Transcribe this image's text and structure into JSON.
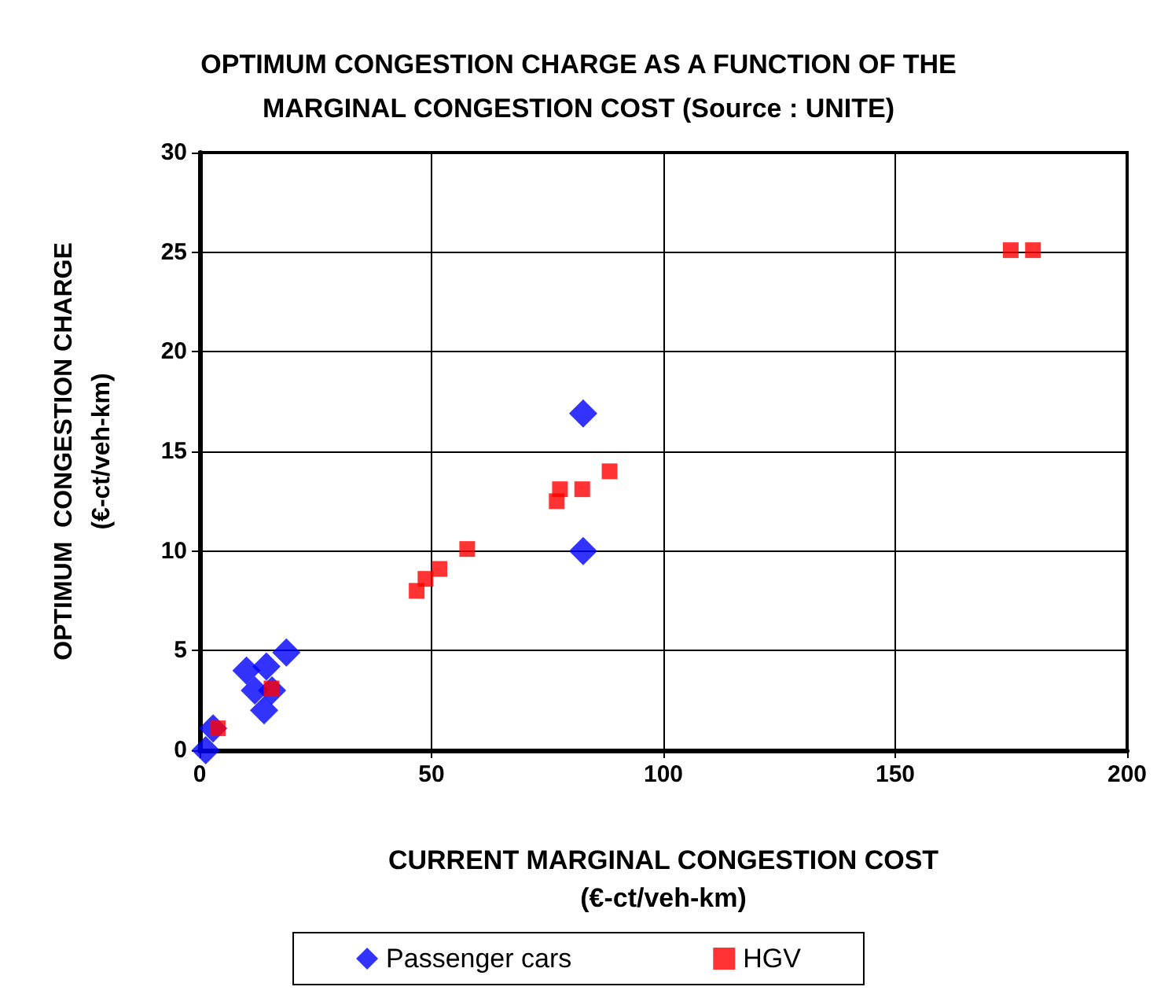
{
  "chart_data": {
    "type": "scatter",
    "title": "OPTIMUM CONGESTION CHARGE AS A FUNCTION OF THE\nMARGINAL CONGESTION COST (Source : UNITE)",
    "xlabel": "CURRENT MARGINAL CONGESTION COST\n(€-ct/veh-km)",
    "ylabel": "OPTIMUM  CONGESTION CHARGE\n(€-ct/veh-km)",
    "series": [
      {
        "name": "Passenger cars",
        "color": "#0000ff",
        "marker": "diamond",
        "x": [
          1.3,
          2.9,
          10.1,
          14.4,
          18.7,
          11.9,
          15.6,
          13.9,
          82.7,
          82.7
        ],
        "values": [
          0,
          1.1,
          4,
          4.2,
          4.9,
          3,
          3,
          2,
          16.9,
          10
        ]
      },
      {
        "name": "HGV",
        "color": "#ff0000",
        "marker": "square",
        "x": [
          3.9,
          15.5,
          46.8,
          48.7,
          51.7,
          57.7,
          77,
          77.7,
          82.5,
          88.4,
          174.9,
          179.7
        ],
        "values": [
          1.1,
          3.1,
          8,
          8.6,
          9.1,
          10.1,
          12.5,
          13.1,
          13.1,
          14,
          25.1,
          25.1
        ]
      }
    ],
    "xlim": [
      0,
      200
    ],
    "xticks": [
      0,
      50,
      100,
      150,
      200
    ],
    "ylim": [
      0,
      30
    ],
    "yticks": [
      0,
      5,
      10,
      15,
      20,
      25,
      30
    ],
    "grid": true,
    "legend": "bottom"
  }
}
